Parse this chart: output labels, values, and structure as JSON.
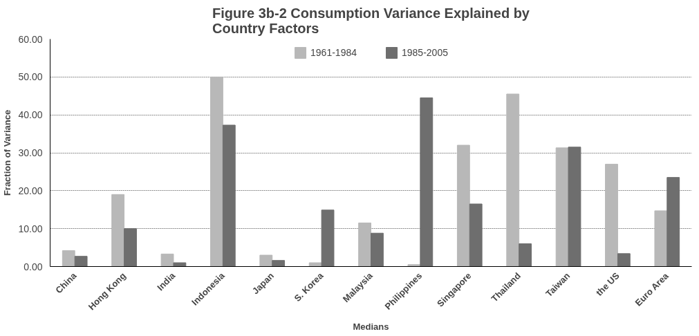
{
  "chart_data": {
    "type": "bar",
    "title": "Figure 3b-2 Consumption Variance Explained by Country Factors",
    "xlabel": "Medians",
    "ylabel": "Fraction of Variance",
    "categories": [
      "China",
      "Hong Kong",
      "India",
      "Indonesia",
      "Japan",
      "S. Korea",
      "Malaysia",
      "Philippines",
      "Singapore",
      "Thailand",
      "Taiwan",
      "the US",
      "Euro Area"
    ],
    "series": [
      {
        "name": "1961-1984",
        "color": "#b8b8b8",
        "values": [
          4.2,
          19.0,
          3.3,
          50.0,
          3.0,
          1.0,
          11.5,
          0.5,
          32.0,
          45.5,
          31.3,
          27.0,
          14.7
        ]
      },
      {
        "name": "1985-2005",
        "color": "#6e6e6e",
        "values": [
          2.7,
          10.0,
          1.0,
          37.3,
          1.6,
          14.9,
          8.8,
          44.5,
          16.5,
          6.0,
          31.5,
          3.4,
          23.5
        ]
      }
    ],
    "ylim": [
      0,
      60
    ],
    "yticks": [
      {
        "value": 0,
        "label": "0.00"
      },
      {
        "value": 10,
        "label": "10.00"
      },
      {
        "value": 20,
        "label": "20.00"
      },
      {
        "value": 30,
        "label": "30.00"
      },
      {
        "value": 40,
        "label": "40.00"
      },
      {
        "value": 50,
        "label": "50.00"
      },
      {
        "value": 60,
        "label": "60.00"
      }
    ],
    "grid": "y",
    "legend": "top"
  }
}
